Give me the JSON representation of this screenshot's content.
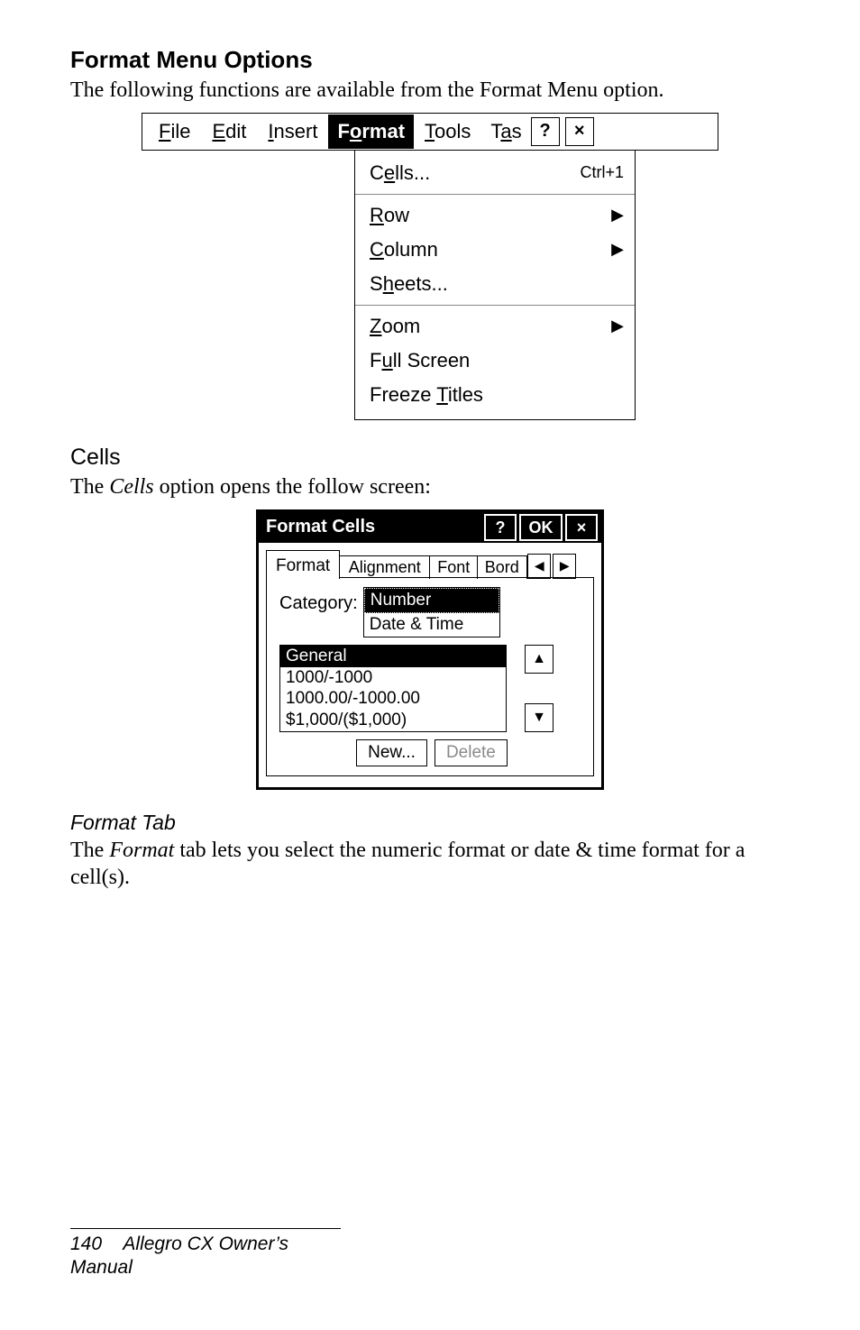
{
  "headings": {
    "main": "Format Menu Options",
    "intro": "The following functions are available from the Format Menu option.",
    "cells": "Cells",
    "cells_intro_pre": "The ",
    "cells_intro_em": "Cells",
    "cells_intro_post": " option opens the follow screen:",
    "format_tab": "Format Tab",
    "format_tab_text_pre": "The ",
    "format_tab_text_em": "Format",
    "format_tab_text_post": " tab lets you select the numeric format or date & time format for a cell(s)."
  },
  "footer": {
    "page": "140",
    "title": "Allegro CX Owner’s Manual"
  },
  "menu": {
    "items": {
      "file": {
        "u": "F",
        "rest": "ile"
      },
      "edit": {
        "u": "E",
        "rest": "dit"
      },
      "insert": {
        "u": "I",
        "rest": "nsert"
      },
      "format": {
        "pre": "F",
        "u": "o",
        "rest": "rmat"
      },
      "tools": {
        "u": "T",
        "rest": "ools"
      },
      "task": {
        "pre": "T",
        "u": "a",
        "rest": "s"
      }
    },
    "help_glyph": "?",
    "close_glyph": "×",
    "dropdown": {
      "cells": {
        "pre": "C",
        "u": "e",
        "rest": "lls...",
        "shortcut": "Ctrl+1"
      },
      "row": {
        "u": "R",
        "rest": "ow",
        "arrow": "▶"
      },
      "column": {
        "u": "C",
        "rest": "olumn",
        "arrow": "▶"
      },
      "sheets": {
        "pre": "S",
        "u": "h",
        "rest": "eets..."
      },
      "zoom": {
        "u": "Z",
        "rest": "oom",
        "arrow": "▶"
      },
      "full": {
        "pre": "F",
        "u": "u",
        "rest": "ll Screen"
      },
      "freeze": {
        "pre": "Freeze ",
        "u": "T",
        "rest": "itles"
      }
    }
  },
  "dialog": {
    "title": "Format Cells",
    "help_glyph": "?",
    "ok": "OK",
    "close_glyph": "×",
    "tabs": {
      "format": "Format",
      "alignment": "Alignment",
      "font": "Font",
      "border": "Bord"
    },
    "nav_prev": "◀",
    "nav_next": "▶",
    "category_label": "Category:",
    "categories": {
      "number": "Number",
      "datetime": "Date & Time"
    },
    "formats": {
      "general": "General",
      "f1": "1000/-1000",
      "f2": "1000.00/-1000.00",
      "f3": "$1,000/($1,000)"
    },
    "spin_up": "▲",
    "spin_down": "▼",
    "new_btn": "New...",
    "delete_btn": "Delete"
  }
}
